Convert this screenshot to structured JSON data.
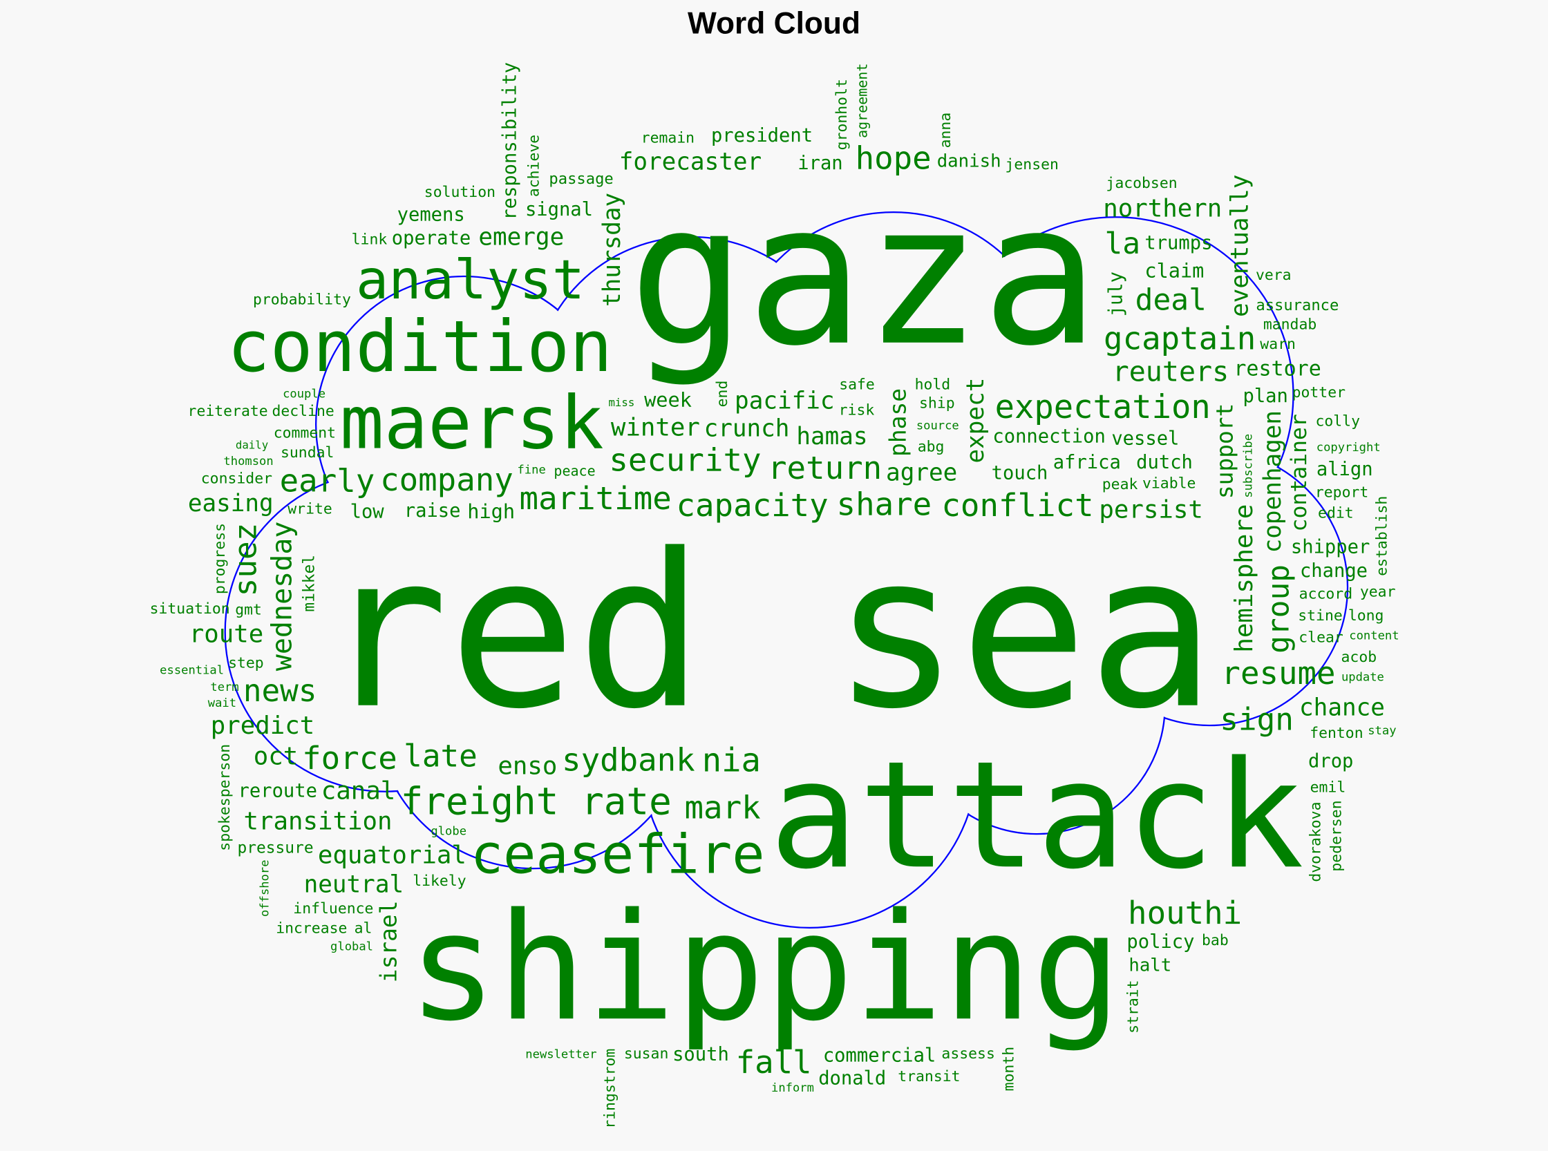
{
  "title": "Word Cloud",
  "chart_data": {
    "type": "wordcloud",
    "title": "Word Cloud",
    "color": "#008000",
    "outline_color": "#0000ff",
    "mask_shape": "cloud",
    "words": [
      "red sea",
      "gaza",
      "attack",
      "shipping",
      "condition",
      "maersk",
      "analyst",
      "ceasefire",
      "freight rate",
      "expectation",
      "gcaptain",
      "company",
      "security",
      "maritime",
      "early",
      "reuters",
      "hope",
      "deal",
      "la",
      "northern",
      "forecaster",
      "restore",
      "conflict",
      "resume",
      "sydbank",
      "capacity",
      "return",
      "share",
      "nia",
      "houthi",
      "mark",
      "fall",
      "enso",
      "late",
      "news",
      "force",
      "sign",
      "agree",
      "hamas",
      "crunch",
      "easing",
      "route",
      "winter",
      "predict",
      "canal",
      "transition",
      "reroute",
      "pressure",
      "equatorial",
      "neutral",
      "oct",
      "persist",
      "chance",
      "drop",
      "halt",
      "policy",
      "south",
      "likely",
      "commercial",
      "donald",
      "touch",
      "week",
      "pacific",
      "connection",
      "africa",
      "vessel",
      "viable",
      "president",
      "safe",
      "passage",
      "remain",
      "danish",
      "iran",
      "hold",
      "ship",
      "jacobsen",
      "trumps",
      "claim",
      "vera",
      "assurance",
      "jensen",
      "warn",
      "dutch",
      "potter",
      "plan",
      "colly",
      "peak",
      "mandab",
      "report",
      "align",
      "edit",
      "accord",
      "stine",
      "clear",
      "copyright",
      "shipper",
      "change",
      "year",
      "long",
      "acob",
      "source",
      "content",
      "update",
      "abg",
      "peace",
      "stay",
      "fenton",
      "emil",
      "bab",
      "inform",
      "assess",
      "transit",
      "susan",
      "globe",
      "raise",
      "risk",
      "write",
      "high",
      "fine",
      "sundal",
      "step",
      "influence",
      "low",
      "al",
      "gmt",
      "newsletter",
      "increase",
      "global",
      "term",
      "wait",
      "essential",
      "situation",
      "consider",
      "daily",
      "miss",
      "thomson",
      "comment",
      "decline",
      "signal",
      "emerge",
      "operate",
      "yemens",
      "probability",
      "solution",
      "link",
      "reiterate",
      "couple",
      "suez",
      "wednesday",
      "mikkel",
      "responsibility",
      "achieve",
      "end",
      "expect",
      "gronholt",
      "anna",
      "eventually",
      "july",
      "container",
      "agreement",
      "copenhagen",
      "subscribe",
      "support",
      "establish",
      "hemisphere",
      "group",
      "thursday",
      "progress",
      "spokesperson",
      "offshore",
      "israel",
      "ringstrom",
      "strait",
      "phase",
      "dvorakova",
      "pedersen",
      "month"
    ]
  }
}
